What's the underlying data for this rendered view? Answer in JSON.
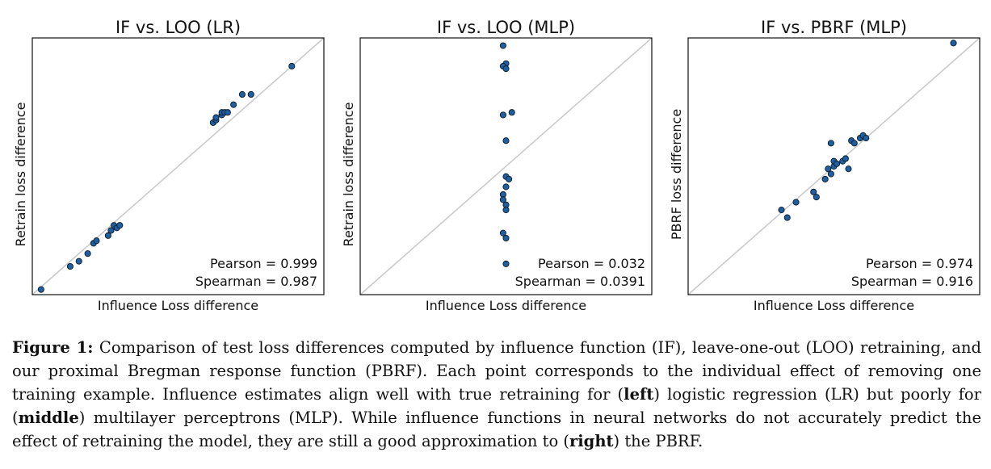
{
  "chart_data": [
    {
      "type": "scatter",
      "title": "IF vs. LOO (LR)",
      "xlabel": "Influence Loss difference",
      "ylabel": "Retrain loss difference",
      "stats": [
        "Pearson = 0.999",
        "Spearman = 0.987"
      ],
      "xlim": [
        0,
        1
      ],
      "ylim": [
        0,
        1
      ],
      "diagonal": true,
      "point_color": "#1f5fa0",
      "points": [
        [
          0.03,
          0.02
        ],
        [
          0.13,
          0.11
        ],
        [
          0.16,
          0.13
        ],
        [
          0.19,
          0.16
        ],
        [
          0.21,
          0.2
        ],
        [
          0.22,
          0.21
        ],
        [
          0.26,
          0.23
        ],
        [
          0.27,
          0.25
        ],
        [
          0.28,
          0.27
        ],
        [
          0.29,
          0.26
        ],
        [
          0.3,
          0.27
        ],
        [
          0.62,
          0.67
        ],
        [
          0.63,
          0.68
        ],
        [
          0.63,
          0.69
        ],
        [
          0.65,
          0.7
        ],
        [
          0.65,
          0.71
        ],
        [
          0.66,
          0.71
        ],
        [
          0.67,
          0.71
        ],
        [
          0.69,
          0.74
        ],
        [
          0.72,
          0.78
        ],
        [
          0.75,
          0.78
        ],
        [
          0.89,
          0.89
        ]
      ]
    },
    {
      "type": "scatter",
      "title": "IF vs. LOO (MLP)",
      "xlabel": "Influence Loss difference",
      "ylabel": "Retrain loss difference",
      "stats": [
        "Pearson = 0.032",
        "Spearman = 0.0391"
      ],
      "xlim": [
        0,
        1
      ],
      "ylim": [
        0,
        1
      ],
      "diagonal": true,
      "point_color": "#1f5fa0",
      "points": [
        [
          0.49,
          0.97
        ],
        [
          0.5,
          0.9
        ],
        [
          0.49,
          0.89
        ],
        [
          0.5,
          0.88
        ],
        [
          0.49,
          0.7
        ],
        [
          0.52,
          0.71
        ],
        [
          0.5,
          0.6
        ],
        [
          0.5,
          0.46
        ],
        [
          0.51,
          0.45
        ],
        [
          0.5,
          0.42
        ],
        [
          0.49,
          0.39
        ],
        [
          0.49,
          0.37
        ],
        [
          0.5,
          0.35
        ],
        [
          0.5,
          0.33
        ],
        [
          0.49,
          0.24
        ],
        [
          0.5,
          0.22
        ],
        [
          0.5,
          0.12
        ]
      ]
    },
    {
      "type": "scatter",
      "title": "IF vs. PBRF (MLP)",
      "xlabel": "Influence Loss difference",
      "ylabel": "PBRF loss difference",
      "stats": [
        "Pearson = 0.974",
        "Spearman = 0.916"
      ],
      "xlim": [
        0,
        1
      ],
      "ylim": [
        0,
        1
      ],
      "diagonal": true,
      "point_color": "#1f5fa0",
      "points": [
        [
          0.32,
          0.33
        ],
        [
          0.34,
          0.3
        ],
        [
          0.37,
          0.36
        ],
        [
          0.43,
          0.4
        ],
        [
          0.44,
          0.38
        ],
        [
          0.47,
          0.45
        ],
        [
          0.48,
          0.49
        ],
        [
          0.49,
          0.47
        ],
        [
          0.5,
          0.5
        ],
        [
          0.5,
          0.52
        ],
        [
          0.51,
          0.51
        ],
        [
          0.53,
          0.52
        ],
        [
          0.55,
          0.49
        ],
        [
          0.49,
          0.59
        ],
        [
          0.54,
          0.53
        ],
        [
          0.56,
          0.6
        ],
        [
          0.57,
          0.59
        ],
        [
          0.59,
          0.61
        ],
        [
          0.6,
          0.62
        ],
        [
          0.61,
          0.61
        ],
        [
          0.91,
          0.98
        ]
      ]
    }
  ],
  "caption": {
    "label": "Figure 1:",
    "t1": " Comparison of test loss differences computed by influence function (IF), leave-one-out (LOO) retraining, and our proximal Bregman response function (PBRF). Each point corresponds to the individual effect of removing one training example. Influence estimates align well with true retraining for (",
    "b1": "left",
    "t2": ") logistic regression (LR) but poorly for (",
    "b2": "middle",
    "t3": ") multilayer perceptrons (MLP). While influence functions in neural networks do not accurately predict the effect of retraining the model, they are still a good approximation to (",
    "b3": "right",
    "t4": ") the PBRF."
  }
}
